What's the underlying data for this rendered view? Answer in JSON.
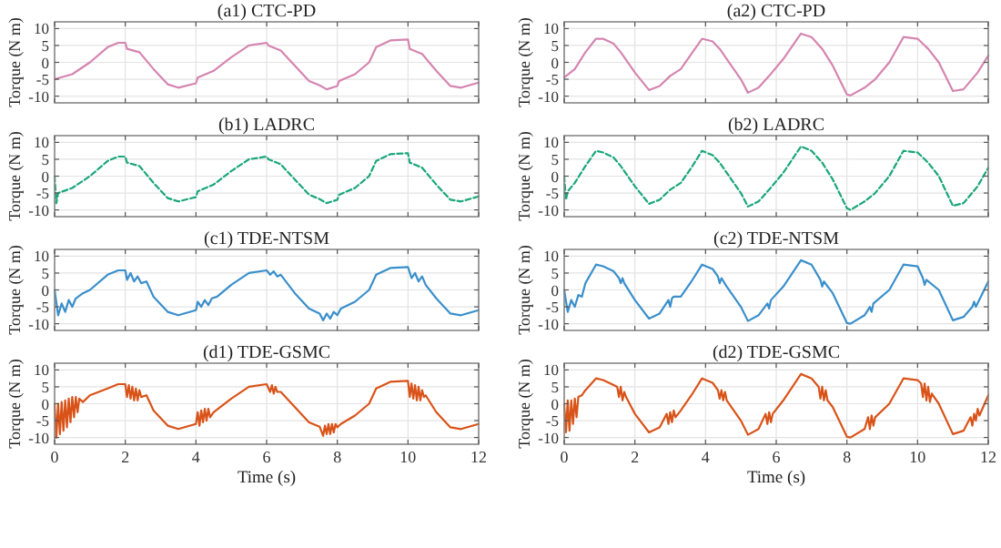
{
  "chart_data": [
    {
      "type": "line",
      "title": "(a1) CTC-PD",
      "ylabel": "Torque (N m)",
      "xlim": [
        0,
        12
      ],
      "ylim": [
        -12,
        12
      ],
      "xticks": [
        0,
        2,
        4,
        6,
        8,
        10,
        12
      ],
      "yticks": [
        -10,
        -5,
        0,
        5,
        10
      ],
      "grid": true,
      "tick_labels": "y",
      "x": [
        0,
        0.5,
        1,
        1.5,
        1.8,
        2,
        2.05,
        2.4,
        2.8,
        3.2,
        3.5,
        4,
        4.05,
        4.5,
        5,
        5.5,
        6,
        6.05,
        6.4,
        6.8,
        7.2,
        7.5,
        7.7,
        8,
        8.05,
        8.5,
        8.9,
        9.1,
        9.5,
        10,
        10.05,
        10.4,
        10.8,
        11.2,
        11.5,
        12
      ],
      "series": [
        {
          "color": "#d585b0",
          "line_style": "solid",
          "values": [
            -5,
            -3.5,
            0,
            4.5,
            5.8,
            5.8,
            4,
            3,
            -2,
            -6.5,
            -7.5,
            -6.2,
            -4.5,
            -2.5,
            1.5,
            5,
            5.8,
            5,
            3.5,
            -1,
            -5.5,
            -6.8,
            -8,
            -7,
            -5.5,
            -3.5,
            0,
            4.5,
            6.5,
            6.8,
            4,
            2.5,
            -2.5,
            -7,
            -7.5,
            -6
          ]
        }
      ]
    },
    {
      "type": "line",
      "title": "(a2) CTC-PD",
      "ylabel": "Torque (N m)",
      "xlim": [
        0,
        12
      ],
      "ylim": [
        -12,
        12
      ],
      "xticks": [
        0,
        2,
        4,
        6,
        8,
        10,
        12
      ],
      "yticks": [
        -10,
        -5,
        0,
        5,
        10
      ],
      "grid": true,
      "tick_labels": "y",
      "x": [
        0,
        0.3,
        0.6,
        0.9,
        1.1,
        1.4,
        1.6,
        2,
        2.4,
        2.7,
        3,
        3.3,
        3.6,
        3.9,
        4.2,
        4.4,
        4.6,
        5,
        5.2,
        5.5,
        5.8,
        6.2,
        6.7,
        7,
        7.3,
        7.6,
        8,
        8.1,
        8.5,
        8.8,
        9.2,
        9.6,
        10,
        10.3,
        10.6,
        11,
        11.3,
        11.7,
        12
      ],
      "series": [
        {
          "color": "#d585b0",
          "line_style": "solid",
          "values": [
            -4.5,
            -2,
            3,
            7,
            7,
            5.5,
            3,
            -3,
            -8.2,
            -7,
            -4,
            -2,
            2.5,
            7,
            6.2,
            4,
            1,
            -5,
            -9,
            -7.5,
            -4,
            1,
            8.5,
            7.5,
            4,
            -1,
            -9.5,
            -9.8,
            -7.5,
            -5,
            0,
            7.5,
            7,
            4,
            0,
            -8.5,
            -8,
            -3,
            2
          ]
        }
      ]
    },
    {
      "type": "line",
      "title": "(b1) LADRC",
      "ylabel": "Torque (N m)",
      "xlim": [
        0,
        12
      ],
      "ylim": [
        -12,
        12
      ],
      "xticks": [
        0,
        2,
        4,
        6,
        8,
        10,
        12
      ],
      "yticks": [
        -10,
        -5,
        0,
        5,
        10
      ],
      "grid": true,
      "tick_labels": "y",
      "x": [
        0,
        0.05,
        0.1,
        0.5,
        1,
        1.5,
        1.8,
        2,
        2.05,
        2.4,
        2.8,
        3.2,
        3.5,
        4,
        4.05,
        4.5,
        5,
        5.5,
        6,
        6.05,
        6.4,
        6.8,
        7.2,
        7.5,
        7.7,
        8,
        8.05,
        8.5,
        8.9,
        9.1,
        9.5,
        10,
        10.05,
        10.4,
        10.8,
        11.2,
        11.5,
        12
      ],
      "series": [
        {
          "color": "#1aa67a",
          "line_style": "dashed",
          "values": [
            0,
            -8,
            -5,
            -3.5,
            0,
            4.5,
            5.8,
            5.8,
            4,
            3,
            -2,
            -6.5,
            -7.5,
            -6.2,
            -4.5,
            -2.5,
            1.5,
            5,
            5.8,
            5,
            3.5,
            -1,
            -5.5,
            -6.8,
            -8,
            -7,
            -5.5,
            -3.5,
            0,
            4.5,
            6.5,
            6.8,
            4,
            2.5,
            -2.5,
            -7,
            -7.5,
            -6
          ]
        }
      ]
    },
    {
      "type": "line",
      "title": "(b2) LADRC",
      "ylabel": "Torque (N m)",
      "xlim": [
        0,
        12
      ],
      "ylim": [
        -12,
        12
      ],
      "xticks": [
        0,
        2,
        4,
        6,
        8,
        10,
        12
      ],
      "yticks": [
        -10,
        -5,
        0,
        5,
        10
      ],
      "grid": true,
      "tick_labels": "y",
      "x": [
        0,
        0.05,
        0.1,
        0.3,
        0.6,
        0.9,
        1.1,
        1.4,
        1.6,
        2,
        2.4,
        2.7,
        3,
        3.3,
        3.6,
        3.9,
        4.2,
        4.4,
        4.6,
        5,
        5.2,
        5.5,
        5.8,
        6.2,
        6.7,
        7,
        7.3,
        7.6,
        8,
        8.1,
        8.5,
        8.8,
        9.2,
        9.6,
        10,
        10.3,
        10.6,
        11,
        11.3,
        11.7,
        12
      ],
      "series": [
        {
          "color": "#1aa67a",
          "line_style": "dashed",
          "values": [
            0,
            -7,
            -4.5,
            -2,
            3,
            7.5,
            7,
            5.5,
            3,
            -3,
            -8.2,
            -7,
            -4,
            -2,
            2.5,
            7.5,
            6.2,
            4,
            1,
            -5,
            -9,
            -7.5,
            -4,
            1,
            8.8,
            7.5,
            4,
            -1,
            -9.5,
            -10,
            -7.5,
            -5,
            0,
            7.5,
            7,
            4,
            0,
            -8.8,
            -8,
            -3,
            2.5
          ]
        }
      ]
    },
    {
      "type": "line",
      "title": "(c1) TDE-NTSM",
      "ylabel": "Torque (N m)",
      "xlim": [
        0,
        12
      ],
      "ylim": [
        -12,
        12
      ],
      "xticks": [
        0,
        2,
        4,
        6,
        8,
        10,
        12
      ],
      "yticks": [
        -10,
        -5,
        0,
        5,
        10
      ],
      "grid": true,
      "tick_labels": "y",
      "x": [
        0,
        0.1,
        0.2,
        0.3,
        0.4,
        0.5,
        0.6,
        0.8,
        1,
        1.5,
        1.8,
        2,
        2.05,
        2.15,
        2.25,
        2.35,
        2.45,
        2.6,
        2.8,
        3.2,
        3.5,
        4,
        4.05,
        4.15,
        4.25,
        4.35,
        4.45,
        4.6,
        5,
        5.5,
        6,
        6.1,
        6.2,
        6.3,
        6.4,
        6.8,
        7.2,
        7.5,
        7.6,
        7.7,
        7.8,
        7.9,
        8,
        8.1,
        8.5,
        8.9,
        9.1,
        9.5,
        10,
        10.1,
        10.2,
        10.3,
        10.4,
        10.5,
        10.8,
        11.2,
        11.5,
        12
      ],
      "series": [
        {
          "color": "#3a8fcb",
          "line_style": "solid",
          "values": [
            0,
            -7.5,
            -4,
            -6.5,
            -3,
            -5,
            -2.5,
            -1,
            0,
            4.5,
            5.8,
            5.8,
            3,
            5,
            2.5,
            4,
            2,
            2.5,
            -2,
            -6.5,
            -7.5,
            -6,
            -3.5,
            -5,
            -3,
            -4.5,
            -2.5,
            -2,
            1.5,
            5,
            5.8,
            4.5,
            5.5,
            4,
            4.5,
            -1,
            -5.5,
            -7,
            -9,
            -7,
            -8.5,
            -6.5,
            -7.5,
            -5.5,
            -3.5,
            0,
            4.5,
            6.5,
            6.8,
            3.5,
            5,
            2.5,
            4,
            1.5,
            -2.5,
            -7,
            -7.5,
            -6
          ]
        }
      ]
    },
    {
      "type": "line",
      "title": "(c2) TDE-NTSM",
      "ylabel": "Torque (N m)",
      "xlim": [
        0,
        12
      ],
      "ylim": [
        -12,
        12
      ],
      "xticks": [
        0,
        2,
        4,
        6,
        8,
        10,
        12
      ],
      "yticks": [
        -10,
        -5,
        0,
        5,
        10
      ],
      "grid": true,
      "tick_labels": "y",
      "x": [
        0,
        0.1,
        0.2,
        0.3,
        0.4,
        0.5,
        0.6,
        0.9,
        1.1,
        1.4,
        1.55,
        1.6,
        1.65,
        1.7,
        2,
        2.4,
        2.7,
        2.95,
        3,
        3.05,
        3.1,
        3.3,
        3.6,
        3.9,
        4.2,
        4.35,
        4.4,
        4.45,
        4.6,
        5,
        5.2,
        5.5,
        5.75,
        5.8,
        5.85,
        6.2,
        6.7,
        7,
        7.25,
        7.3,
        7.35,
        7.6,
        8,
        8.1,
        8.5,
        8.65,
        8.7,
        8.75,
        9.2,
        9.6,
        10,
        10.15,
        10.2,
        10.25,
        10.6,
        11,
        11.3,
        11.55,
        11.6,
        11.65,
        12
      ],
      "series": [
        {
          "color": "#3a8fcb",
          "line_style": "solid",
          "values": [
            0,
            -6.5,
            -3,
            -5,
            -1.5,
            -2,
            2,
            7.5,
            7,
            5.5,
            3.5,
            2,
            3.5,
            2,
            -3,
            -8.5,
            -7,
            -3,
            -5,
            -2.5,
            -2,
            -2,
            2.5,
            7.5,
            6.2,
            4,
            2,
            3.5,
            1,
            -5,
            -9.2,
            -7.5,
            -4,
            -5.5,
            -3,
            1,
            8.8,
            7.5,
            3,
            1,
            2.5,
            -1,
            -9.8,
            -10,
            -7.5,
            -5,
            -6.5,
            -4,
            0,
            7.5,
            7,
            3.5,
            1.5,
            3,
            0,
            -9,
            -8,
            -5,
            -3.5,
            -5,
            2.5
          ]
        }
      ]
    },
    {
      "type": "line",
      "title": "(d1) TDE-GSMC",
      "xlabel": "Time (s)",
      "ylabel": "Torque (N m)",
      "xlim": [
        0,
        12
      ],
      "ylim": [
        -12,
        12
      ],
      "xticks": [
        0,
        2,
        4,
        6,
        8,
        10,
        12
      ],
      "yticks": [
        -10,
        -5,
        0,
        5,
        10
      ],
      "grid": true,
      "x": [
        0,
        0.05,
        0.1,
        0.15,
        0.2,
        0.25,
        0.3,
        0.35,
        0.4,
        0.45,
        0.5,
        0.55,
        0.6,
        0.65,
        0.7,
        0.8,
        1,
        1.5,
        1.8,
        2,
        2.05,
        2.1,
        2.15,
        2.2,
        2.25,
        2.3,
        2.35,
        2.4,
        2.45,
        2.6,
        2.8,
        3.2,
        3.5,
        4,
        4.05,
        4.1,
        4.15,
        4.2,
        4.25,
        4.3,
        4.35,
        4.4,
        4.5,
        5,
        5.5,
        6,
        6.1,
        6.15,
        6.2,
        6.25,
        6.3,
        6.4,
        6.8,
        7.2,
        7.5,
        7.6,
        7.65,
        7.7,
        7.75,
        7.8,
        7.85,
        7.9,
        7.95,
        8,
        8.1,
        8.5,
        8.9,
        9.1,
        9.5,
        10,
        10.05,
        10.1,
        10.15,
        10.2,
        10.25,
        10.3,
        10.35,
        10.4,
        10.45,
        10.5,
        10.8,
        11.2,
        11.5,
        12
      ],
      "series": [
        {
          "color": "#d95319",
          "line_style": "solid",
          "values": [
            0,
            -10,
            0,
            -9,
            0.5,
            -8,
            1,
            -7,
            1.5,
            -5.5,
            2,
            -4,
            2,
            -2.5,
            1.5,
            0.5,
            2.5,
            4.5,
            5.8,
            5.8,
            2,
            5.5,
            1.5,
            5,
            1,
            4.5,
            1,
            4,
            2,
            2.5,
            -2,
            -6.5,
            -7.5,
            -6,
            -2.5,
            -6.5,
            -2,
            -5.5,
            -1.5,
            -5,
            -1.5,
            -4,
            -2.5,
            1.5,
            5,
            5.8,
            3.5,
            5.5,
            3,
            5,
            3.5,
            3.5,
            -1,
            -5.5,
            -6.8,
            -9.5,
            -6.5,
            -9,
            -6,
            -9,
            -6,
            -8.5,
            -6,
            -7,
            -6,
            -3.5,
            0,
            4.5,
            6.5,
            6.8,
            2,
            6,
            1.5,
            5.5,
            1,
            5,
            1,
            4,
            2,
            2.5,
            -2.5,
            -7,
            -7.5,
            -6
          ]
        }
      ]
    },
    {
      "type": "line",
      "title": "(d2) TDE-GSMC",
      "xlabel": "Time (s)",
      "ylabel": "Torque (N m)",
      "xlim": [
        0,
        12
      ],
      "ylim": [
        -12,
        12
      ],
      "xticks": [
        0,
        2,
        4,
        6,
        8,
        10,
        12
      ],
      "yticks": [
        -10,
        -5,
        0,
        5,
        10
      ],
      "grid": true,
      "x": [
        0,
        0.05,
        0.1,
        0.15,
        0.2,
        0.25,
        0.3,
        0.35,
        0.4,
        0.5,
        0.6,
        0.9,
        1.1,
        1.4,
        1.5,
        1.55,
        1.6,
        1.65,
        1.7,
        1.75,
        2,
        2.4,
        2.7,
        2.9,
        2.95,
        3,
        3.05,
        3.1,
        3.15,
        3.3,
        3.6,
        3.9,
        4.2,
        4.35,
        4.4,
        4.45,
        4.5,
        4.55,
        4.6,
        5,
        5.2,
        5.5,
        5.7,
        5.75,
        5.8,
        5.85,
        5.9,
        6.2,
        6.7,
        7,
        7.2,
        7.25,
        7.3,
        7.35,
        7.4,
        7.45,
        7.6,
        8,
        8.1,
        8.5,
        8.6,
        8.65,
        8.7,
        8.75,
        8.8,
        9.2,
        9.6,
        10,
        10.1,
        10.15,
        10.2,
        10.25,
        10.3,
        10.35,
        10.4,
        10.6,
        11,
        11.3,
        11.5,
        11.55,
        11.6,
        11.65,
        11.7,
        11.75,
        12
      ],
      "series": [
        {
          "color": "#d95319",
          "line_style": "solid",
          "values": [
            0,
            -8.5,
            1,
            -8,
            1,
            -6,
            1.5,
            -4,
            2,
            2.5,
            4,
            7.5,
            7,
            5.5,
            5,
            2,
            5,
            1,
            3.5,
            2,
            -3,
            -8.5,
            -7,
            -3,
            -6,
            -2.5,
            -5.5,
            -2,
            -4,
            -2,
            2.5,
            7.5,
            6.2,
            4,
            1.5,
            4,
            1,
            3.5,
            1,
            -5,
            -9.2,
            -7.5,
            -3,
            -6,
            -2.5,
            -5.5,
            -3,
            1,
            8.8,
            7.5,
            5,
            1.5,
            5,
            1,
            4,
            1,
            -1,
            -9.8,
            -10,
            -7.5,
            -4,
            -7.5,
            -3.5,
            -6.5,
            -4,
            0,
            7.5,
            7,
            6,
            2,
            6,
            1,
            5,
            0.5,
            3,
            0,
            -9,
            -8,
            -4,
            -6.5,
            -3,
            -5,
            -1.5,
            -3.5,
            2.5
          ]
        }
      ]
    }
  ]
}
